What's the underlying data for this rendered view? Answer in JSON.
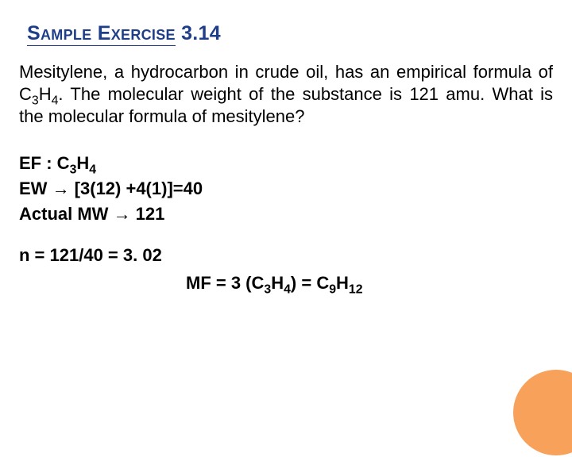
{
  "slide": {
    "title_word1": "Sample",
    "title_word2": "Exercise",
    "title_num": "3.14",
    "problem_pre": "Mesitylene, a hydrocarbon in crude oil, has an empirical formula of C",
    "ef_sub1": "3",
    "ef_mid": "H",
    "ef_sub2": "4",
    "problem_post": ". The molecular weight of the substance is 121 amu. What is the molecular formula of mesitylene?",
    "lineEF_pre": "EF : C",
    "lineEW_pre": "EW ",
    "arrow": "→",
    "lineEW_val": " [3(12) +4(1)]=40",
    "lineMW_pre": "Actual MW  ",
    "lineMW_val": " 121",
    "lineN": "n = 121/40 = 3. 02",
    "lineMF_pre": "MF = 3 (C",
    "lineMF_mid1": ") = C",
    "mf_sub1": "9",
    "mf_mid": "H",
    "mf_sub2": "12"
  },
  "style": {
    "title_color": "#1f3e8a",
    "accent_circle": "#f7a15a",
    "background": "#ffffff",
    "body_fontsize_pt": 22,
    "title_fontsize_pt": 25
  }
}
